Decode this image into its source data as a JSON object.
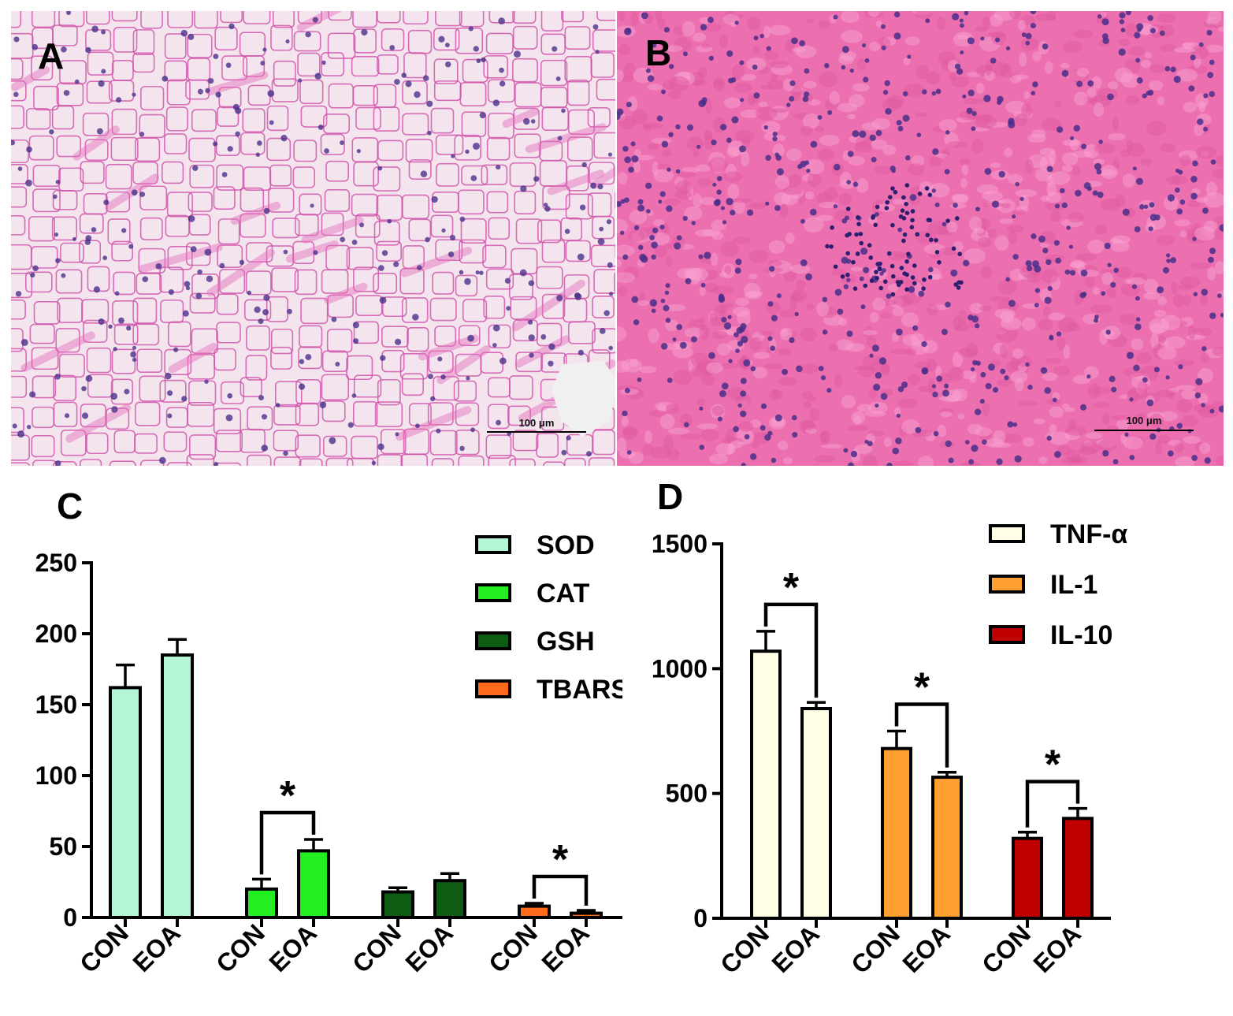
{
  "panels": {
    "a": {
      "letter": "A",
      "scale_bar": "100 μm"
    },
    "b": {
      "letter": "B",
      "scale_bar": "100 μm"
    },
    "c": {
      "letter": "C"
    },
    "d": {
      "letter": "D"
    }
  },
  "colors": {
    "histology_a_bg": "#f3e4ee",
    "histology_a_membrane": "#d04fa8",
    "histology_b_bg": "#ec6fb0",
    "nucleus": "#4a2f8a"
  },
  "chart_data": [
    {
      "id": "C",
      "type": "bar",
      "ylim": [
        0,
        250
      ],
      "yticks": [
        0,
        50,
        100,
        150,
        200,
        250
      ],
      "error_bars": true,
      "legend_position": "top-right",
      "groups": [
        {
          "name": "SOD",
          "color": "#b3f5d5",
          "bars": [
            {
              "label": "CON",
              "value": 162,
              "err": 16
            },
            {
              "label": "EOA",
              "value": 185,
              "err": 11
            }
          ],
          "significance": ""
        },
        {
          "name": "CAT",
          "color": "#22ee22",
          "bars": [
            {
              "label": "CON",
              "value": 20,
              "err": 7
            },
            {
              "label": "EOA",
              "value": 47,
              "err": 8
            }
          ],
          "significance": "*"
        },
        {
          "name": "GSH",
          "color": "#0e5c14",
          "bars": [
            {
              "label": "CON",
              "value": 18,
              "err": 3
            },
            {
              "label": "EOA",
              "value": 26,
              "err": 5
            }
          ],
          "significance": ""
        },
        {
          "name": "TBARSs",
          "color": "#ff6a1a",
          "bars": [
            {
              "label": "CON",
              "value": 8,
              "err": 2
            },
            {
              "label": "EOA",
              "value": 3,
              "err": 2
            }
          ],
          "significance": "*"
        }
      ]
    },
    {
      "id": "D",
      "type": "bar",
      "ylim": [
        0,
        1500
      ],
      "yticks": [
        0,
        500,
        1000,
        1500
      ],
      "error_bars": true,
      "legend_position": "top-right",
      "groups": [
        {
          "name": "TNF-α",
          "color": "#fffde6",
          "bars": [
            {
              "label": "CON",
              "value": 1070,
              "err": 80
            },
            {
              "label": "EOA",
              "value": 840,
              "err": 25
            }
          ],
          "significance": "*"
        },
        {
          "name": "IL-1",
          "color": "#ffa030",
          "bars": [
            {
              "label": "CON",
              "value": 680,
              "err": 70
            },
            {
              "label": "EOA",
              "value": 565,
              "err": 20
            }
          ],
          "significance": "*"
        },
        {
          "name": "IL-10",
          "color": "#c00000",
          "bars": [
            {
              "label": "CON",
              "value": 320,
              "err": 25
            },
            {
              "label": "EOA",
              "value": 400,
              "err": 40
            }
          ],
          "significance": "*"
        }
      ]
    }
  ]
}
